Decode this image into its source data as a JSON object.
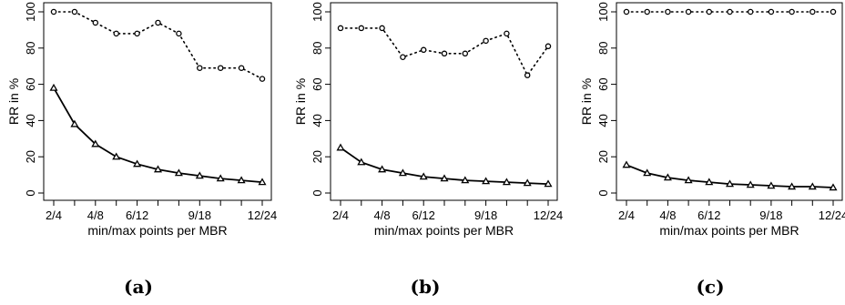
{
  "chart_data": [
    {
      "type": "line",
      "panel_label": "(a)",
      "xlabel": "min/max points per MBR",
      "ylabel": "RR in %",
      "x_ticks": [
        "2/4",
        "4/8",
        "6/12",
        "9/18",
        "12/24"
      ],
      "ylim": [
        0,
        100
      ],
      "y_ticks": [
        0,
        20,
        40,
        60,
        80,
        100
      ],
      "grid": false,
      "series": [
        {
          "style": "dotted",
          "marker": "circle",
          "values": [
            100,
            100,
            94,
            88,
            88,
            94,
            88,
            69,
            69,
            69,
            63
          ]
        },
        {
          "style": "solid",
          "marker": "triangle",
          "values": [
            58,
            38,
            27,
            20,
            16,
            13,
            11,
            9.5,
            8,
            7,
            6
          ]
        }
      ]
    },
    {
      "type": "line",
      "panel_label": "(b)",
      "xlabel": "min/max points per MBR",
      "ylabel": "RR in %",
      "x_ticks": [
        "2/4",
        "4/8",
        "6/12",
        "9/18",
        "12/24"
      ],
      "ylim": [
        0,
        100
      ],
      "y_ticks": [
        0,
        20,
        40,
        60,
        80,
        100
      ],
      "grid": false,
      "series": [
        {
          "style": "dotted",
          "marker": "circle",
          "values": [
            91,
            91,
            91,
            75,
            79,
            77,
            77,
            84,
            88,
            65,
            81
          ]
        },
        {
          "style": "solid",
          "marker": "triangle",
          "values": [
            25,
            17,
            13,
            11,
            9,
            8,
            7,
            6.5,
            6,
            5.5,
            5
          ]
        }
      ]
    },
    {
      "type": "line",
      "panel_label": "(c)",
      "xlabel": "min/max points per MBR",
      "ylabel": "RR in %",
      "x_ticks": [
        "2/4",
        "4/8",
        "6/12",
        "9/18",
        "12/24"
      ],
      "ylim": [
        0,
        100
      ],
      "y_ticks": [
        0,
        20,
        40,
        60,
        80,
        100
      ],
      "grid": false,
      "series": [
        {
          "style": "dotted",
          "marker": "circle",
          "values": [
            100,
            100,
            100,
            100,
            100,
            100,
            100,
            100,
            100,
            100,
            100
          ]
        },
        {
          "style": "solid",
          "marker": "triangle",
          "values": [
            15.5,
            11,
            8.5,
            7,
            6,
            5,
            4.5,
            4,
            3.5,
            3.5,
            3
          ]
        }
      ]
    }
  ]
}
